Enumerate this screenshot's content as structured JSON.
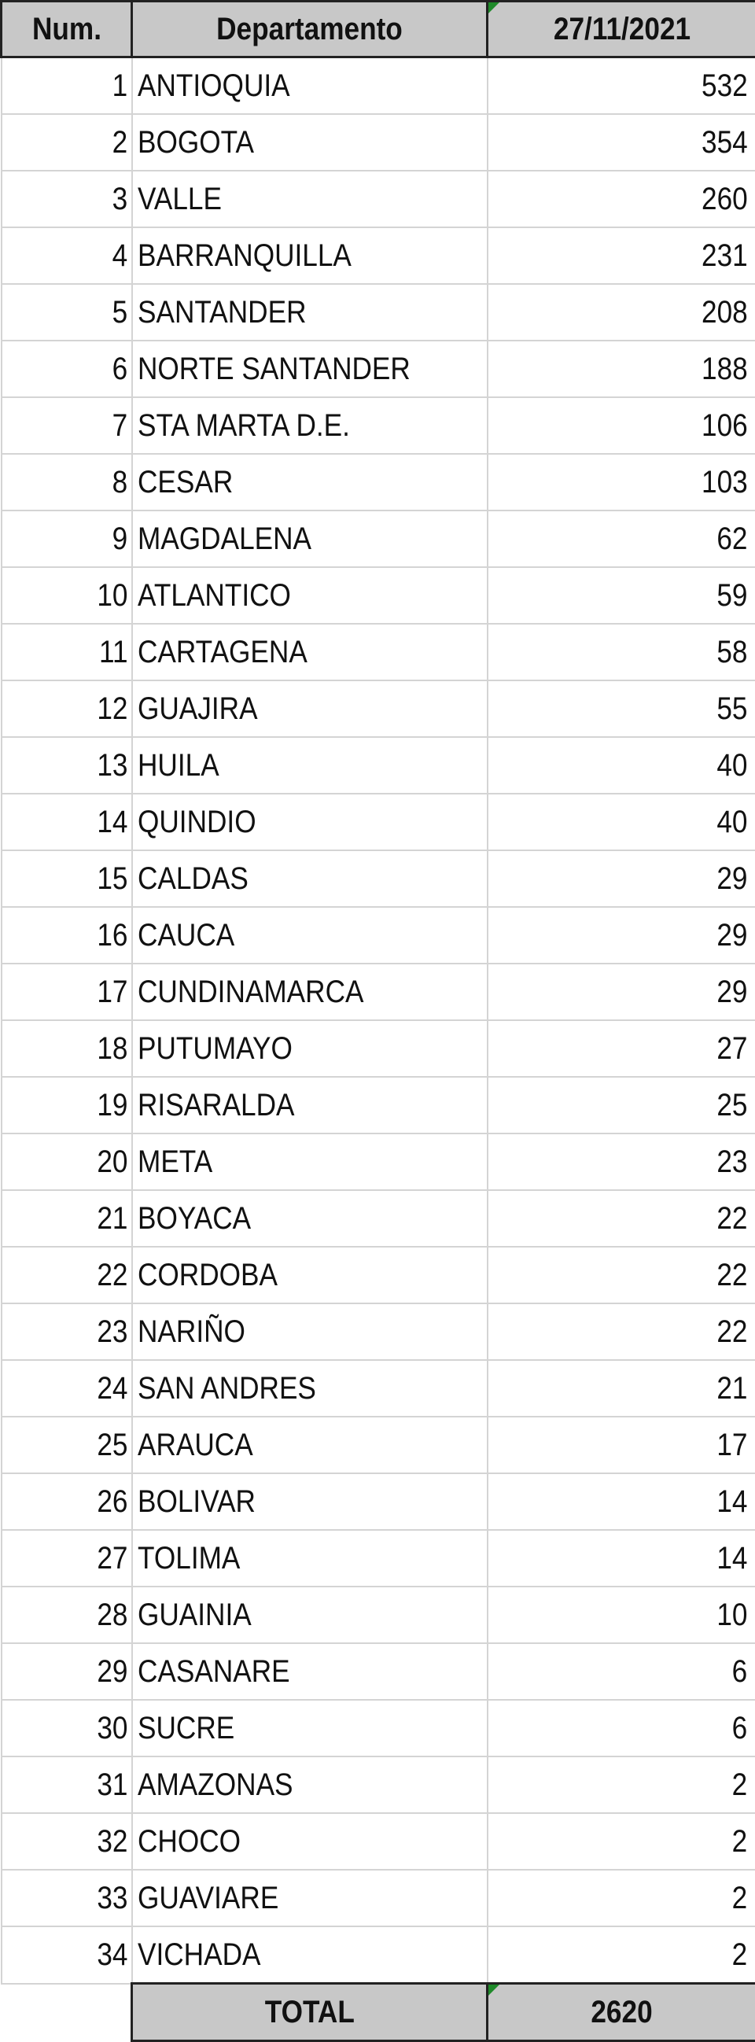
{
  "headers": {
    "num": "Num.",
    "department": "Departamento",
    "date": "27/11/2021"
  },
  "rows": [
    {
      "num": "1",
      "name": "ANTIOQUIA",
      "value": "532"
    },
    {
      "num": "2",
      "name": "BOGOTA",
      "value": "354"
    },
    {
      "num": "3",
      "name": "VALLE",
      "value": "260"
    },
    {
      "num": "4",
      "name": "BARRANQUILLA",
      "value": "231"
    },
    {
      "num": "5",
      "name": "SANTANDER",
      "value": "208"
    },
    {
      "num": "6",
      "name": "NORTE SANTANDER",
      "value": "188"
    },
    {
      "num": "7",
      "name": "STA MARTA D.E.",
      "value": "106"
    },
    {
      "num": "8",
      "name": "CESAR",
      "value": "103"
    },
    {
      "num": "9",
      "name": "MAGDALENA",
      "value": "62"
    },
    {
      "num": "10",
      "name": "ATLANTICO",
      "value": "59"
    },
    {
      "num": "11",
      "name": "CARTAGENA",
      "value": "58"
    },
    {
      "num": "12",
      "name": "GUAJIRA",
      "value": "55"
    },
    {
      "num": "13",
      "name": "HUILA",
      "value": "40"
    },
    {
      "num": "14",
      "name": "QUINDIO",
      "value": "40"
    },
    {
      "num": "15",
      "name": "CALDAS",
      "value": "29"
    },
    {
      "num": "16",
      "name": "CAUCA",
      "value": "29"
    },
    {
      "num": "17",
      "name": "CUNDINAMARCA",
      "value": "29"
    },
    {
      "num": "18",
      "name": "PUTUMAYO",
      "value": "27"
    },
    {
      "num": "19",
      "name": "RISARALDA",
      "value": "25"
    },
    {
      "num": "20",
      "name": "META",
      "value": "23"
    },
    {
      "num": "21",
      "name": "BOYACA",
      "value": "22"
    },
    {
      "num": "22",
      "name": "CORDOBA",
      "value": "22"
    },
    {
      "num": "23",
      "name": "NARIÑO",
      "value": "22"
    },
    {
      "num": "24",
      "name": "SAN ANDRES",
      "value": "21"
    },
    {
      "num": "25",
      "name": "ARAUCA",
      "value": "17"
    },
    {
      "num": "26",
      "name": "BOLIVAR",
      "value": "14"
    },
    {
      "num": "27",
      "name": "TOLIMA",
      "value": "14"
    },
    {
      "num": "28",
      "name": "GUAINIA",
      "value": "10"
    },
    {
      "num": "29",
      "name": "CASANARE",
      "value": "6"
    },
    {
      "num": "30",
      "name": "SUCRE",
      "value": "6"
    },
    {
      "num": "31",
      "name": "AMAZONAS",
      "value": "2"
    },
    {
      "num": "32",
      "name": "CHOCO",
      "value": "2"
    },
    {
      "num": "33",
      "name": "GUAVIARE",
      "value": "2"
    },
    {
      "num": "34",
      "name": "VICHADA",
      "value": "2"
    }
  ],
  "total": {
    "label": "TOTAL",
    "value": "2620"
  },
  "colors": {
    "header_bg": "#c8c8c8",
    "indicator": "#1f8a2a"
  }
}
